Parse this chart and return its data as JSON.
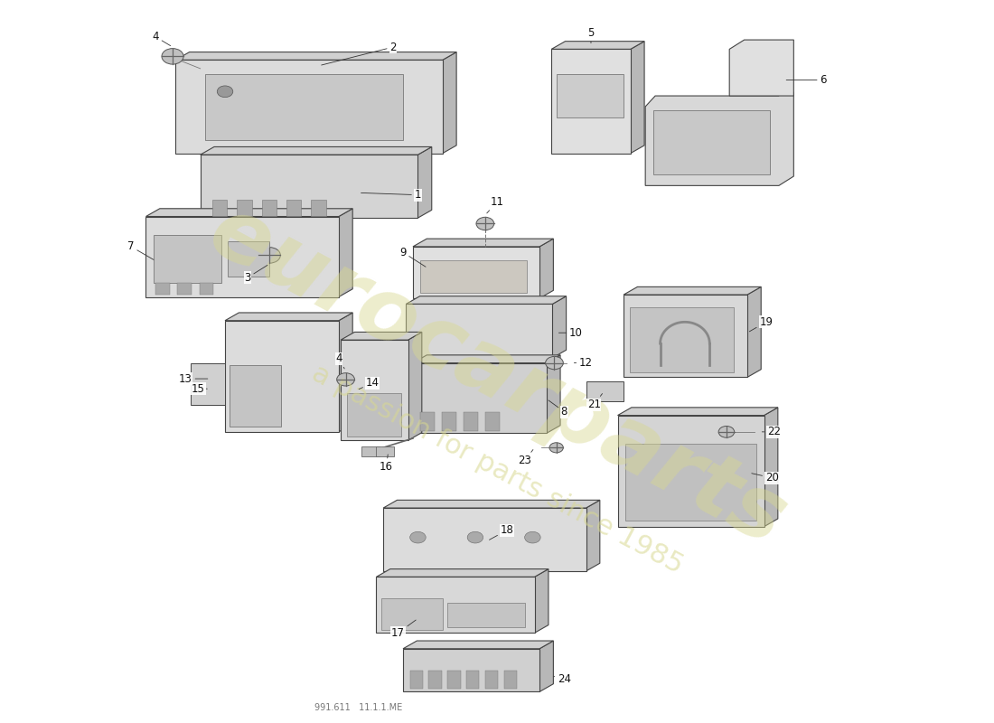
{
  "background_color": "#ffffff",
  "watermark_line1": "eurocarparts",
  "watermark_line2": "a passion for parts since 1985",
  "watermark_color": "#d8d890",
  "footer_text": "991.611   11.1.1.ME",
  "label_fontsize": 8.5,
  "label_color": "#111111",
  "line_color": "#333333",
  "part_fill": "#e2e2e2",
  "part_edge": "#444444",
  "shadow_fill": "#c0c0c0"
}
